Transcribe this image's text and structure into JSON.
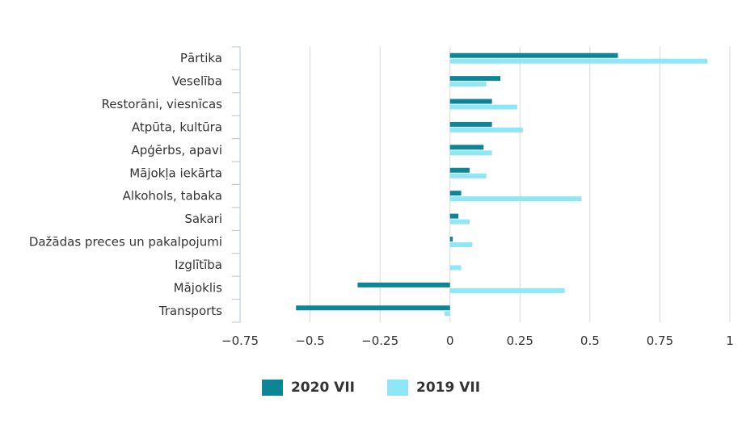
{
  "chart_data": {
    "type": "bar",
    "orientation": "horizontal",
    "categories": [
      "Pārtika",
      "Veselība",
      "Restorāni, viesnīcas",
      "Atpūta, kultūra",
      "Apģērbs, apavi",
      "Mājokļa iekārta",
      "Alkohols, tabaka",
      "Sakari",
      "Dažādas preces un pakalpojumi",
      "Izglītība",
      "Mājoklis",
      "Transports"
    ],
    "series": [
      {
        "name": "2020 VII",
        "color": "#0e8597",
        "values": [
          0.6,
          0.18,
          0.15,
          0.15,
          0.12,
          0.07,
          0.04,
          0.03,
          0.01,
          0.0,
          -0.33,
          -0.55
        ]
      },
      {
        "name": "2019 VII",
        "color": "#8fe6f7",
        "values": [
          0.92,
          0.13,
          0.24,
          0.26,
          0.15,
          0.13,
          0.47,
          0.07,
          0.08,
          0.04,
          0.41,
          -0.02
        ]
      }
    ],
    "xlim": [
      -0.75,
      1
    ],
    "xticks": [
      -0.75,
      -0.5,
      -0.25,
      0,
      0.25,
      0.5,
      0.75,
      1
    ],
    "xtick_labels": [
      "−0.75",
      "−0.5",
      "−0.25",
      "0",
      "0.25",
      "0.5",
      "0.75",
      "1"
    ],
    "grid": true,
    "legend_position": "bottom-center"
  }
}
